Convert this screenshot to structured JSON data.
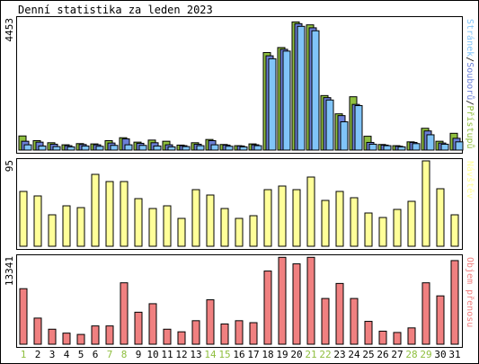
{
  "title": "Denní statistika za leden 2023",
  "colors": {
    "background": "#ffffff",
    "border": "#000000",
    "hits": "#8fbf3f",
    "files": "#6b7fd7",
    "pages": "#80c4f8",
    "visits": "#ffff99",
    "kbytes": "#f08080",
    "weekend_label": "#8fbf3f",
    "weekday_label": "#000000"
  },
  "chart_data": [
    {
      "type": "bar",
      "name": "hits-files-pages",
      "ylabel": "4453",
      "ylim": [
        0,
        4453
      ],
      "legend": [
        "Přístupů",
        "Souborů",
        "Stránek"
      ],
      "legend_separator": "/",
      "categories": [
        "1",
        "2",
        "3",
        "4",
        "5",
        "6",
        "7",
        "8",
        "9",
        "10",
        "11",
        "12",
        "13",
        "14",
        "15",
        "16",
        "17",
        "18",
        "19",
        "20",
        "21",
        "22",
        "23",
        "24",
        "25",
        "26",
        "27",
        "28",
        "29",
        "30",
        "31"
      ],
      "weekend": [
        1,
        7,
        8,
        14,
        15,
        21,
        22,
        28,
        29
      ],
      "series": [
        {
          "name": "Přístupů",
          "values": [
            480,
            320,
            250,
            180,
            220,
            210,
            320,
            420,
            270,
            340,
            300,
            170,
            250,
            360,
            190,
            150,
            210,
            3310,
            3480,
            4350,
            4250,
            1850,
            1230,
            1810,
            470,
            190,
            150,
            280,
            740,
            300,
            570
          ]
        },
        {
          "name": "Souborů",
          "values": [
            300,
            270,
            200,
            150,
            190,
            180,
            240,
            380,
            230,
            250,
            180,
            150,
            200,
            320,
            170,
            140,
            180,
            3200,
            3420,
            4290,
            4150,
            1780,
            1170,
            1550,
            260,
            170,
            130,
            260,
            650,
            240,
            400
          ]
        },
        {
          "name": "Stránek",
          "values": [
            180,
            140,
            120,
            110,
            140,
            130,
            160,
            180,
            160,
            140,
            110,
            120,
            150,
            180,
            130,
            110,
            150,
            3100,
            3360,
            4200,
            4050,
            1700,
            960,
            1510,
            200,
            150,
            110,
            220,
            520,
            200,
            280
          ]
        }
      ]
    },
    {
      "type": "bar",
      "name": "visits",
      "ylabel": "95",
      "ylim": [
        0,
        95
      ],
      "legend": [
        "Návštěv"
      ],
      "categories": [
        "1",
        "2",
        "3",
        "4",
        "5",
        "6",
        "7",
        "8",
        "9",
        "10",
        "11",
        "12",
        "13",
        "14",
        "15",
        "16",
        "17",
        "18",
        "19",
        "20",
        "21",
        "22",
        "23",
        "24",
        "25",
        "26",
        "27",
        "28",
        "29",
        "30",
        "31"
      ],
      "series": [
        {
          "name": "Návštěv",
          "values": [
            61,
            56,
            35,
            45,
            43,
            80,
            72,
            72,
            53,
            42,
            45,
            31,
            63,
            57,
            42,
            31,
            34,
            63,
            67,
            63,
            77,
            51,
            61,
            54,
            37,
            32,
            41,
            50,
            95,
            64,
            35
          ]
        }
      ]
    },
    {
      "type": "bar",
      "name": "kbytes",
      "ylabel": "13341",
      "ylim": [
        0,
        13341
      ],
      "legend": [
        "Objem přenosu"
      ],
      "categories": [
        "1",
        "2",
        "3",
        "4",
        "5",
        "6",
        "7",
        "8",
        "9",
        "10",
        "11",
        "12",
        "13",
        "14",
        "15",
        "16",
        "17",
        "18",
        "19",
        "20",
        "21",
        "22",
        "23",
        "24",
        "25",
        "26",
        "27",
        "28",
        "29",
        "30",
        "31"
      ],
      "series": [
        {
          "name": "Objem přenosu",
          "values": [
            8500,
            4000,
            2300,
            1700,
            1500,
            2800,
            2800,
            9400,
            4900,
            6200,
            2300,
            1900,
            3600,
            6800,
            3100,
            3600,
            3300,
            11200,
            13300,
            12300,
            13300,
            7000,
            9300,
            7000,
            3500,
            2000,
            1800,
            2500,
            9400,
            7400,
            12800
          ]
        }
      ]
    }
  ]
}
